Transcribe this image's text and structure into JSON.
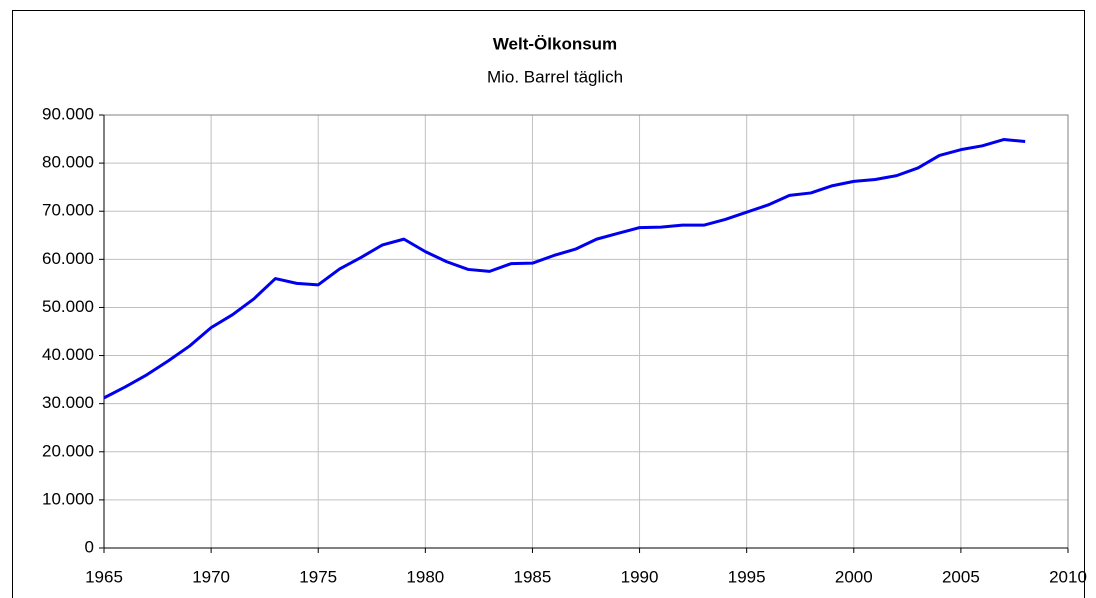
{
  "chart_data": {
    "type": "line",
    "title": "Welt-Ölkonsum",
    "subtitle": "Mio. Barrel täglich",
    "x": [
      1965,
      1966,
      1967,
      1968,
      1969,
      1970,
      1971,
      1972,
      1973,
      1974,
      1975,
      1976,
      1977,
      1978,
      1979,
      1980,
      1981,
      1982,
      1983,
      1984,
      1985,
      1986,
      1987,
      1988,
      1989,
      1990,
      1991,
      1992,
      1993,
      1994,
      1995,
      1996,
      1997,
      1998,
      1999,
      2000,
      2001,
      2002,
      2003,
      2004,
      2005,
      2006,
      2007,
      2008
    ],
    "series": [
      {
        "color": "#0000ee",
        "values": [
          31200,
          33500,
          36000,
          38900,
          42000,
          45800,
          48500,
          51800,
          56000,
          55000,
          54700,
          58000,
          60400,
          63000,
          64200,
          61600,
          59500,
          57900,
          57500,
          59100,
          59200,
          60800,
          62100,
          64200,
          65400,
          66600,
          66700,
          67100,
          67100,
          68300,
          69800,
          71300,
          73300,
          73800,
          75300,
          76200,
          76600,
          77400,
          79000,
          81600,
          82800,
          83600,
          84900,
          84500
        ]
      }
    ],
    "xlim": [
      1965,
      2010
    ],
    "xticks": [
      1965,
      1970,
      1975,
      1980,
      1985,
      1990,
      1995,
      2000,
      2005,
      2010
    ],
    "ylim": [
      0,
      90000
    ],
    "yticks": [
      0,
      {
        "value": 10000,
        "label": "10.000"
      },
      {
        "value": 20000,
        "label": "20.000"
      },
      {
        "value": 30000,
        "label": "30.000"
      },
      {
        "value": 40000,
        "label": "40.000"
      },
      {
        "value": 50000,
        "label": "50.000"
      },
      {
        "value": 60000,
        "label": "60.000"
      },
      {
        "value": 70000,
        "label": "70.000"
      },
      {
        "value": 80000,
        "label": "80.000"
      },
      {
        "value": 90000,
        "label": "90.000"
      }
    ],
    "grid": true
  }
}
